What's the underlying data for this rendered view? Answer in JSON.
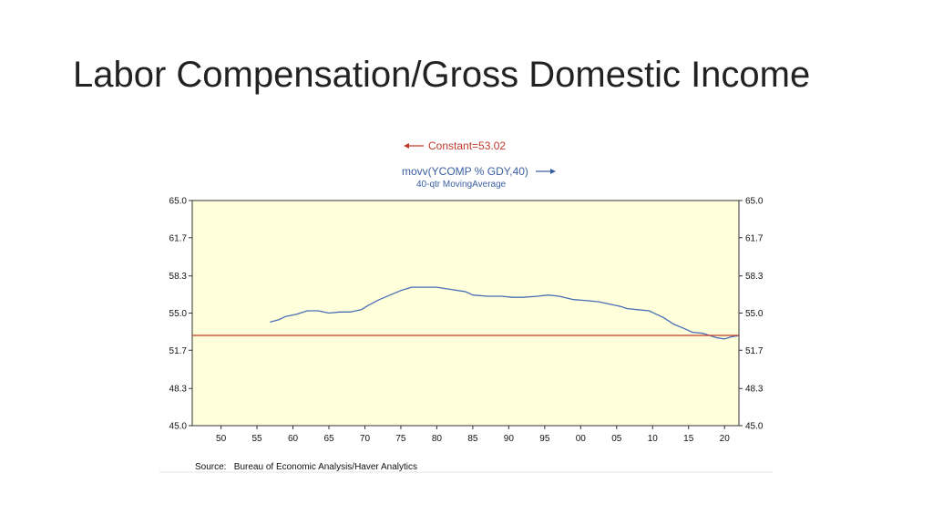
{
  "slide": {
    "title": "Labor Compensation/Gross Domestic Income"
  },
  "chart_data": {
    "type": "line",
    "title": "",
    "xlabel": "",
    "ylabel": "",
    "x_range": [
      1946,
      2022
    ],
    "ylim": [
      45.0,
      65.0
    ],
    "y_ticks": [
      "65.0",
      "61.7",
      "58.3",
      "55.0",
      "51.7",
      "48.3",
      "45.0"
    ],
    "y_tick_values": [
      65.0,
      61.7,
      58.3,
      55.0,
      51.7,
      48.3,
      45.0
    ],
    "x_ticks": [
      "50",
      "55",
      "60",
      "65",
      "70",
      "75",
      "80",
      "85",
      "90",
      "95",
      "00",
      "05",
      "10",
      "15",
      "20"
    ],
    "x_tick_values": [
      1950,
      1955,
      1960,
      1965,
      1970,
      1975,
      1980,
      1985,
      1990,
      1995,
      2000,
      2005,
      2010,
      2015,
      2020
    ],
    "grid": false,
    "background_color": "#ffffdb",
    "series": [
      {
        "label": "movv(YCOMP % GDY,40)",
        "sublabel": "40-qtr MovingAverage",
        "color": "#4a6fb5",
        "x": [
          1956.8,
          1958,
          1959,
          1960.5,
          1962,
          1963.5,
          1965,
          1966.5,
          1968,
          1969.5,
          1970.5,
          1972,
          1973.5,
          1975,
          1976.5,
          1978,
          1980,
          1982,
          1984,
          1985,
          1987,
          1989,
          1990.5,
          1992,
          1994,
          1995.5,
          1997,
          1999,
          2001,
          2002.5,
          2004,
          2005.5,
          2006.5,
          2008,
          2009.5,
          2010.5,
          2011.5,
          2013,
          2014.5,
          2015.5,
          2017,
          2018,
          2019,
          2020,
          2021,
          2022
        ],
        "y": [
          54.2,
          54.4,
          54.7,
          54.9,
          55.2,
          55.2,
          55.0,
          55.1,
          55.1,
          55.3,
          55.7,
          56.2,
          56.6,
          57.0,
          57.3,
          57.3,
          57.3,
          57.1,
          56.9,
          56.6,
          56.5,
          56.5,
          56.4,
          56.4,
          56.5,
          56.6,
          56.5,
          56.2,
          56.1,
          56.0,
          55.8,
          55.6,
          55.4,
          55.3,
          55.2,
          54.9,
          54.6,
          54.0,
          53.6,
          53.3,
          53.2,
          53.0,
          52.8,
          52.7,
          52.9,
          53.0
        ]
      },
      {
        "label": "Constant=53.02",
        "color": "#c0392b",
        "x": [
          1946,
          2022
        ],
        "y": [
          53.02,
          53.02
        ]
      }
    ],
    "legend": {
      "constant_label": "Constant=53.02",
      "series_label": "movv(YCOMP % GDY,40)",
      "series_sublabel": "40-qtr MovingAverage",
      "position": "top-center"
    },
    "source": "Source:   Bureau of Economic Analysis/Haver Analytics"
  }
}
